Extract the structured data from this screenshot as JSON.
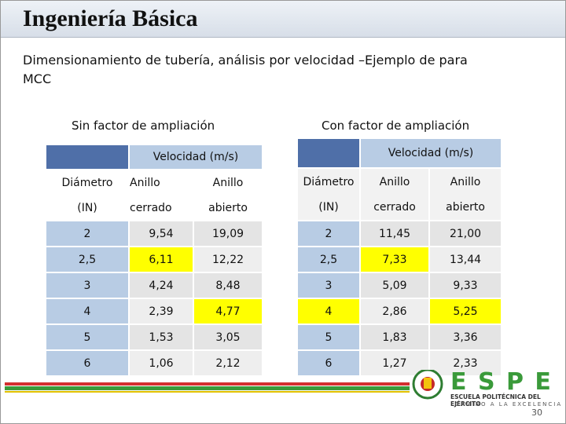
{
  "header": {
    "title": "Ingeniería Básica"
  },
  "subtitle": [
    "Dimensionamiento de tubería, análisis por velocidad  –Ejemplo de para",
    "MCC"
  ],
  "tables": [
    {
      "caption": "Sin factor de ampliación",
      "group_header": "Velocidad (m/s)",
      "columns": [
        [
          "Diámetro",
          "(IN)"
        ],
        [
          "Anillo cerrado"
        ],
        [
          "Anillo",
          "abierto"
        ]
      ],
      "rows": [
        [
          "2",
          "9,54",
          "19,09"
        ],
        [
          "2,5",
          "6,11",
          "12,22"
        ],
        [
          "3",
          "4,24",
          "8,48"
        ],
        [
          "4",
          "2,39",
          "4,77"
        ],
        [
          "5",
          "1,53",
          "3,05"
        ],
        [
          "6",
          "1,06",
          "2,12"
        ]
      ],
      "highlighted": [
        [
          1,
          1
        ],
        [
          3,
          2
        ]
      ]
    },
    {
      "caption": "Con factor de ampliación",
      "group_header": "Velocidad (m/s)",
      "columns": [
        [
          "Diámetro",
          "(IN)"
        ],
        [
          "Anillo",
          "cerrado"
        ],
        [
          "Anillo",
          "abierto"
        ]
      ],
      "rows": [
        [
          "2",
          "11,45",
          "21,00"
        ],
        [
          "2,5",
          "7,33",
          "13,44"
        ],
        [
          "3",
          "5,09",
          "9,33"
        ],
        [
          "4",
          "2,86",
          "5,25"
        ],
        [
          "5",
          "1,83",
          "3,36"
        ],
        [
          "6",
          "1,27",
          "2,33"
        ]
      ],
      "highlighted": [
        [
          1,
          1
        ],
        [
          3,
          0
        ],
        [
          3,
          2
        ]
      ]
    }
  ],
  "footer": {
    "logo": "E S P E",
    "institution": "ESCUELA POLITÉCNICA DEL EJÉRCITO",
    "motto": "CAMINO A LA EXCELENCIA",
    "page": "30"
  }
}
